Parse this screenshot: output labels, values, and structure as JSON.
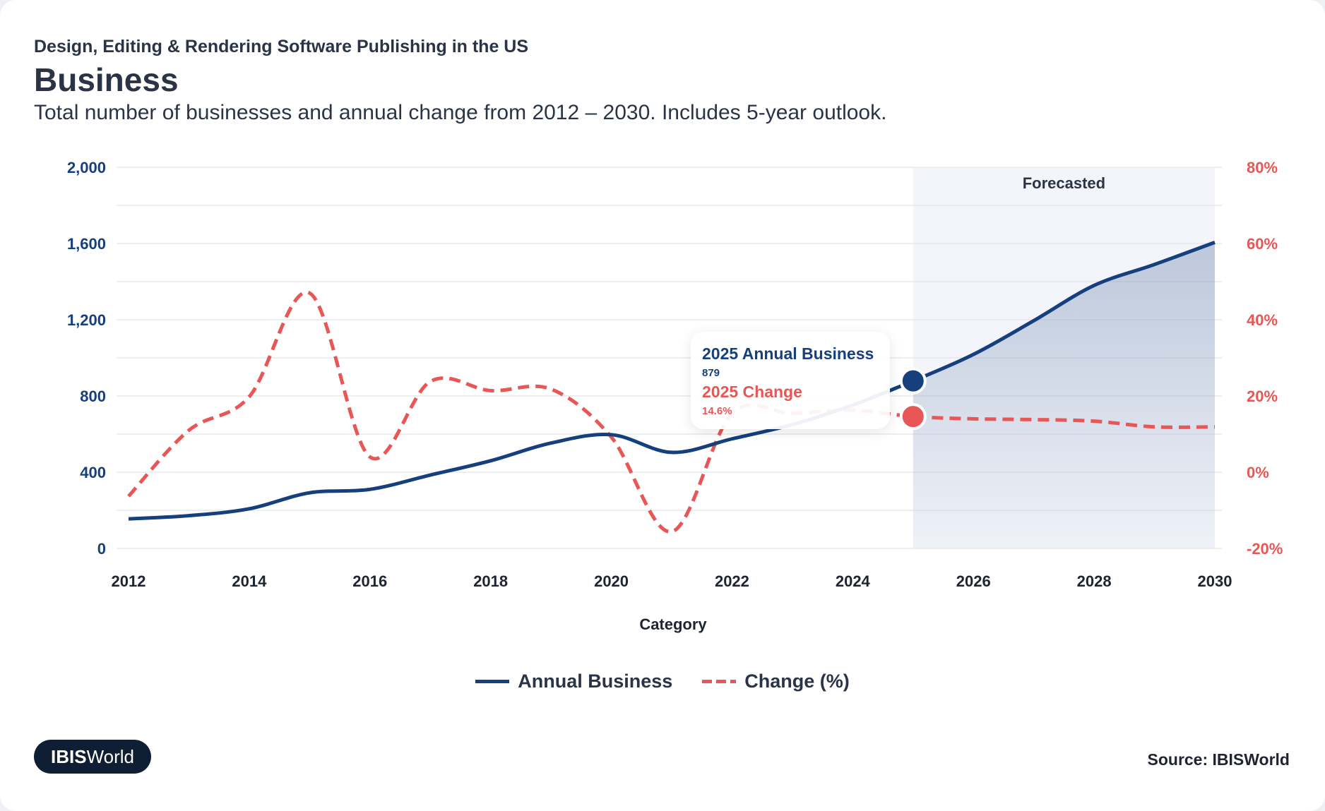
{
  "header": {
    "supertitle": "Design, Editing & Rendering Software Publishing in the US",
    "title": "Business",
    "description": "Total number of businesses and annual change from 2012 – 2030. Includes 5-year outlook."
  },
  "tooltip": {
    "business_label": "2025 Annual Business",
    "business_value": "879",
    "change_label": "2025 Change",
    "change_value": "14.6%"
  },
  "legend": {
    "business": "Annual Business",
    "change": "Change (%)"
  },
  "footer": {
    "logo_bold": "IBIS",
    "logo_rest": "World",
    "source": "Source: IBISWorld"
  },
  "colors": {
    "business": "#163f7d",
    "change": "#e85656",
    "forecast_bg": "#f3f5fa"
  },
  "chart_data": {
    "type": "line",
    "xlabel": "Category",
    "ylabel_left": "",
    "ylabel_right": "",
    "x": [
      2012,
      2013,
      2014,
      2015,
      2016,
      2017,
      2018,
      2019,
      2020,
      2021,
      2022,
      2023,
      2024,
      2025,
      2026,
      2027,
      2028,
      2029,
      2030
    ],
    "x_ticks": [
      "2012",
      "2014",
      "2016",
      "2018",
      "2020",
      "2022",
      "2024",
      "2026",
      "2028",
      "2030"
    ],
    "y_left_ticks": [
      "0",
      "400",
      "800",
      "1,200",
      "1,600",
      "2,000"
    ],
    "y_right_ticks": [
      "-20%",
      "0%",
      "20%",
      "40%",
      "60%",
      "80%"
    ],
    "ylim_left": [
      0,
      2000
    ],
    "ylim_right": [
      -20,
      80
    ],
    "forecast_label": "Forecasted",
    "forecast_from": 2025,
    "series": [
      {
        "name": "Annual Business",
        "axis": "left",
        "style": "solid",
        "values": [
          155,
          172,
          208,
          292,
          310,
          385,
          460,
          553,
          597,
          504,
          575,
          650,
          752,
          879,
          1018,
          1195,
          1380,
          1490,
          1606
        ]
      },
      {
        "name": "Change (%)",
        "axis": "right",
        "style": "dashed",
        "values": [
          -6.3,
          11,
          19.8,
          47,
          4,
          23.8,
          21.4,
          21.8,
          9.2,
          -15.6,
          15.4,
          15.4,
          16.3,
          14.6,
          14,
          13.8,
          13.4,
          11.9,
          11.9
        ]
      }
    ],
    "highlight": {
      "x": 2025
    }
  }
}
